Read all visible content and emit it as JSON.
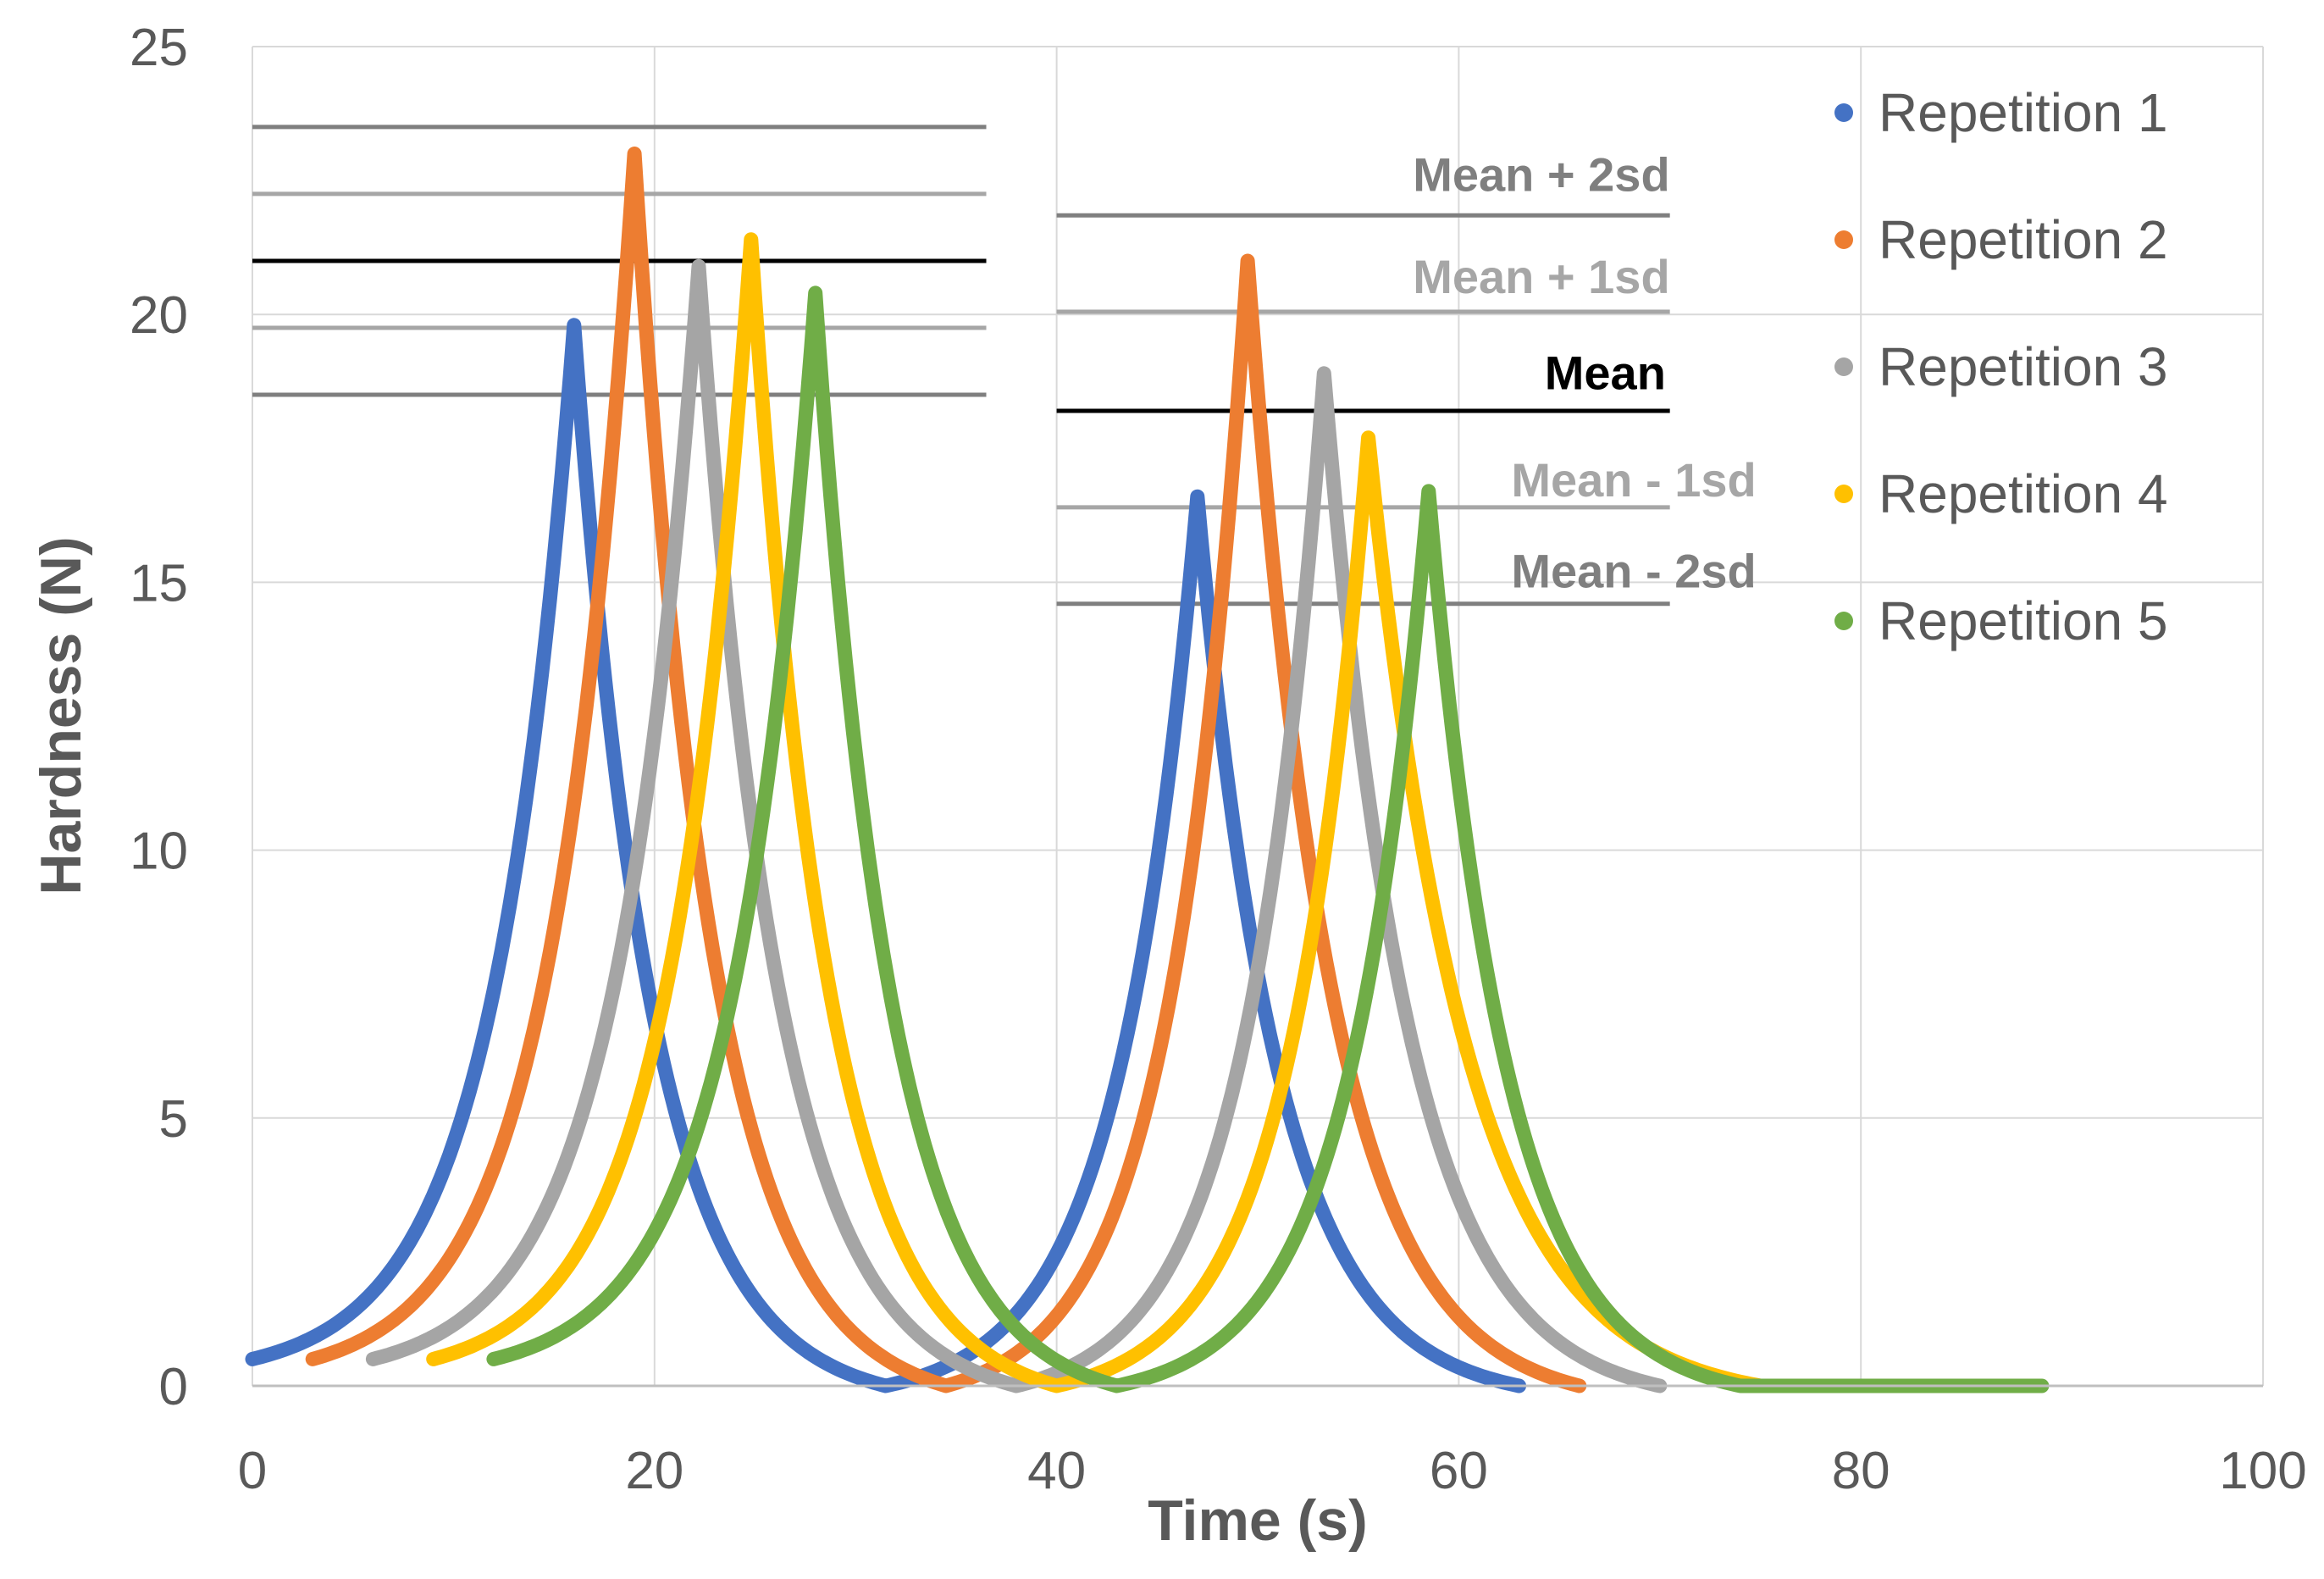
{
  "chart_data": {
    "type": "line",
    "title": "",
    "xlabel": "Time (s)",
    "ylabel": "Hardness (N)",
    "xlim": [
      0,
      100
    ],
    "ylim": [
      0,
      25
    ],
    "xticks": [
      0,
      20,
      40,
      60,
      80,
      100
    ],
    "yticks": [
      0,
      5,
      10,
      15,
      20,
      25
    ],
    "grid": true,
    "legend_position": "top-right",
    "series": [
      {
        "name": "Repetition 1",
        "color": "#4472C4",
        "start1": 0,
        "peak1": [
          16,
          19.8
        ],
        "valley": 31.5,
        "peak2": [
          47,
          16.6
        ],
        "end2": 63,
        "flat_end": 63
      },
      {
        "name": "Repetition 2",
        "color": "#ED7D31",
        "start1": 3,
        "peak1": [
          19,
          23.0
        ],
        "valley": 34.5,
        "peak2": [
          49.5,
          21.0
        ],
        "end2": 66,
        "flat_end": 66
      },
      {
        "name": "Repetition 3",
        "color": "#A5A5A5",
        "start1": 6,
        "peak1": [
          22.2,
          20.9
        ],
        "valley": 38,
        "peak2": [
          53.3,
          18.9
        ],
        "end2": 70,
        "flat_end": 70
      },
      {
        "name": "Repetition 4",
        "color": "#FFC000",
        "start1": 9,
        "peak1": [
          24.8,
          21.4
        ],
        "valley": 40,
        "peak2": [
          55.5,
          17.7
        ],
        "end2": 75,
        "flat_end": 75
      },
      {
        "name": "Repetition 5",
        "color": "#70AD47",
        "start1": 12,
        "peak1": [
          28,
          20.4
        ],
        "valley": 43,
        "peak2": [
          58.5,
          16.7
        ],
        "end2": 74,
        "flat_end": 89
      }
    ],
    "reference_lines": {
      "group1": {
        "x_range": [
          0,
          36.5
        ],
        "levels": [
          {
            "name": "Mean + 2sd",
            "value": 23.5,
            "color": "#7F7F7F"
          },
          {
            "name": "Mean + 1sd",
            "value": 22.25,
            "color": "#A6A6A6"
          },
          {
            "name": "Mean",
            "value": 21.0,
            "color": "#000000"
          },
          {
            "name": "Mean - 1sd",
            "value": 19.75,
            "color": "#A6A6A6"
          },
          {
            "name": "Mean - 2sd",
            "value": 18.5,
            "color": "#7F7F7F"
          }
        ]
      },
      "group2": {
        "x_range": [
          40,
          70.5
        ],
        "levels": [
          {
            "name": "Mean + 2sd",
            "value": 21.85,
            "color": "#7F7F7F"
          },
          {
            "name": "Mean + 1sd",
            "value": 20.05,
            "color": "#A6A6A6"
          },
          {
            "name": "Mean",
            "value": 18.2,
            "color": "#000000"
          },
          {
            "name": "Mean - 1sd",
            "value": 16.4,
            "color": "#A6A6A6"
          },
          {
            "name": "Mean - 2sd",
            "value": 14.6,
            "color": "#7F7F7F"
          }
        ]
      }
    },
    "annotations": [
      {
        "text": "Mean + 2sd",
        "color": "#7F7F7F",
        "bold": true,
        "anchor_x": 70.5,
        "anchor_y": 22.3
      },
      {
        "text": "Mean + 1sd",
        "color": "#A6A6A6",
        "bold": true,
        "anchor_x": 70.5,
        "anchor_y": 20.4
      },
      {
        "text": "Mean",
        "color": "#000000",
        "bold": true,
        "anchor_x": 70.3,
        "anchor_y": 18.6
      },
      {
        "text": "Mean - 1sd",
        "color": "#A6A6A6",
        "bold": true,
        "anchor_x": 74.8,
        "anchor_y": 16.6
      },
      {
        "text": "Mean - 2sd",
        "color": "#7F7F7F",
        "bold": true,
        "anchor_x": 74.8,
        "anchor_y": 14.9
      }
    ]
  }
}
